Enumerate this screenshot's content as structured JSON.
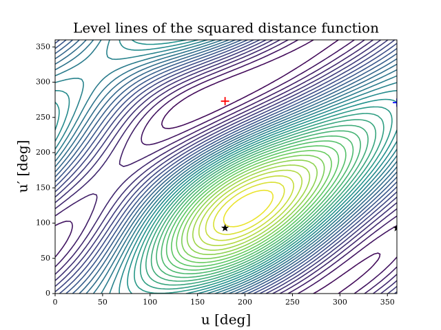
{
  "chart_data": {
    "type": "contour",
    "title": "Level lines of the squared distance function",
    "xlabel": "u [deg]",
    "ylabel": "u′ [deg]",
    "xlim": [
      0,
      360
    ],
    "ylim": [
      0,
      360
    ],
    "xticks": [
      0,
      50,
      100,
      150,
      200,
      250,
      300,
      350
    ],
    "yticks": [
      0,
      50,
      100,
      150,
      200,
      250,
      300,
      350
    ],
    "points": [
      {
        "x": 179,
        "y": 273,
        "color": "#ff0000",
        "marker": "+"
      },
      {
        "x": 360,
        "y": 271,
        "color": "#0000ff",
        "marker": "+"
      },
      {
        "x": 179,
        "y": 93,
        "color": "#000000",
        "marker": "*"
      },
      {
        "x": 360,
        "y": 93,
        "color": "#000000",
        "marker": "*"
      }
    ]
  }
}
